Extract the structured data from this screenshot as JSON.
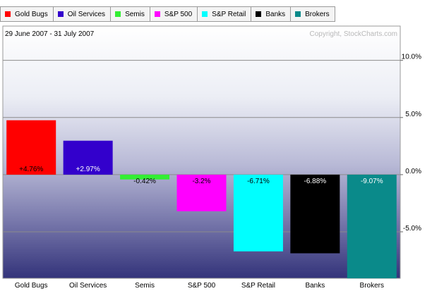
{
  "chart_data": {
    "type": "bar",
    "title": "",
    "date_range": "29 June 2007 - 31 July 2007",
    "copyright": "Copyright, StockCharts.com",
    "categories": [
      "Gold Bugs",
      "Oil Services",
      "Semis",
      "S&P 500",
      "S&P Retail",
      "Banks",
      "Brokers"
    ],
    "values": [
      4.76,
      2.97,
      -0.42,
      -3.2,
      -6.71,
      -6.88,
      -9.07
    ],
    "value_labels": [
      "+4.76%",
      "+2.97%",
      "-0.42%",
      "-3.2%",
      "-6.71%",
      "-6.88%",
      "-9.07%"
    ],
    "colors": [
      "#ff0000",
      "#3300cc",
      "#33ee33",
      "#ff00ff",
      "#00ffff",
      "#000000",
      "#0a8a8a"
    ],
    "value_label_colors": [
      "#000000",
      "#ffffff",
      "#000000",
      "#000000",
      "#000000",
      "#ffffff",
      "#ffffff"
    ],
    "ylim": [
      -9.07,
      13.0
    ],
    "yticks": [
      10.0,
      5.0,
      0.0,
      -5.0
    ],
    "ytick_labels": [
      "10.0%",
      "5.0%",
      "0.0%",
      "-5.0%"
    ],
    "grid": true,
    "legend_position": "top"
  }
}
